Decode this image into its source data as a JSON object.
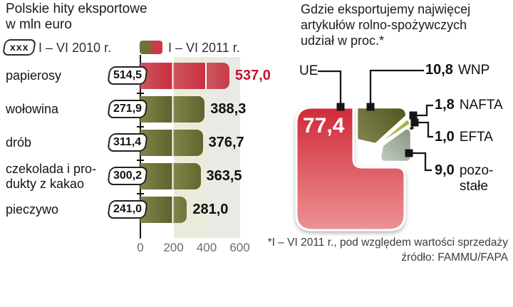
{
  "left": {
    "title1": "Polskie hity eksportowe",
    "title2": "w mln euro",
    "legend_2010_box": "xxx",
    "legend_2010": "I – VI 2010 r.",
    "legend_2011": "I – VI 2011 r.",
    "ticks": [
      "0",
      "200",
      "400",
      "600"
    ],
    "rows": [
      {
        "label1": "papierosy",
        "label2": "",
        "v2010": "514,5",
        "v2011": "537,0",
        "mln": 537.0
      },
      {
        "label1": "wołowina",
        "label2": "",
        "v2010": "271,9",
        "v2011": "388,3",
        "mln": 388.3
      },
      {
        "label1": "drób",
        "label2": "",
        "v2010": "311,4",
        "v2011": "376,7",
        "mln": 376.7
      },
      {
        "label1": "czekolada i pro-",
        "label2": "dukty z kakao",
        "v2010": "300,2",
        "v2011": "363,5",
        "mln": 363.5
      },
      {
        "label1": "pieczywo",
        "label2": "",
        "v2010": "241,0",
        "v2011": "281,0",
        "mln": 281.0
      }
    ]
  },
  "right": {
    "title1": "Gdzie eksportujemy najwięcej",
    "title2": "artykułów rolno-spożywczych",
    "title3": "udział w proc.*",
    "ue_label": "UE",
    "ue_value": "77,4",
    "wnp_value": "10,8",
    "wnp_label": "WNP",
    "nafta_value": "1,8",
    "nafta_label": "NAFTA",
    "efta_value": "1,0",
    "efta_label": "EFTA",
    "pozostale_value": "9,0",
    "pozostale_label1": "pozo-",
    "pozostale_label2": "stałe"
  },
  "footnote1": "*I – VI 2011 r., pod względem wartości sprzedaży",
  "footnote2": "źródło: FAMMU/FAPA",
  "colors": {
    "bar_2011_red_dark": "#c92f3e",
    "bar_2011_red_light": "#cb5760",
    "bar_2011_olive_dark": "#5e622c",
    "bar_2011_olive_light": "#81854a",
    "value_red": "#c2142f",
    "pie_ue_red_top": "#d02a38",
    "pie_ue_red_bottom": "#ec9294",
    "pie_wnp_olive": "#5f6329",
    "pie_nafta_yellow": "#a9b43c",
    "pie_efta_black": "#1e1e1c",
    "pie_pozostale_sage": "#a3b2a3"
  },
  "chart_data": [
    {
      "type": "bar",
      "orientation": "horizontal",
      "title": "Polskie hity eksportowe w mln euro",
      "categories": [
        "papierosy",
        "wołowina",
        "drób",
        "czekolada i produkty z kakao",
        "pieczywo"
      ],
      "series": [
        {
          "name": "I – VI 2010 r.",
          "values": [
            514.5,
            271.9,
            311.4,
            300.2,
            241.0
          ]
        },
        {
          "name": "I – VI 2011 r.",
          "values": [
            537.0,
            388.3,
            376.7,
            363.5,
            281.0
          ]
        }
      ],
      "xlim": [
        0,
        600
      ],
      "x_ticks": [
        0,
        200,
        400,
        600
      ],
      "unit": "mln euro",
      "legend_position": "top",
      "grid": false
    },
    {
      "type": "pie",
      "title": "Gdzie eksportujemy najwięcej artykułów rolno-spożywczych, udział w proc.*",
      "labels": [
        "UE",
        "WNP",
        "NAFTA",
        "EFTA",
        "pozostałe"
      ],
      "values": [
        77.4,
        10.8,
        1.8,
        1.0,
        9.0
      ],
      "unit": "proc.",
      "footnote": "*I – VI 2011 r., pod względem wartości sprzedaży",
      "source": "źródło: FAMMU/FAPA"
    }
  ]
}
